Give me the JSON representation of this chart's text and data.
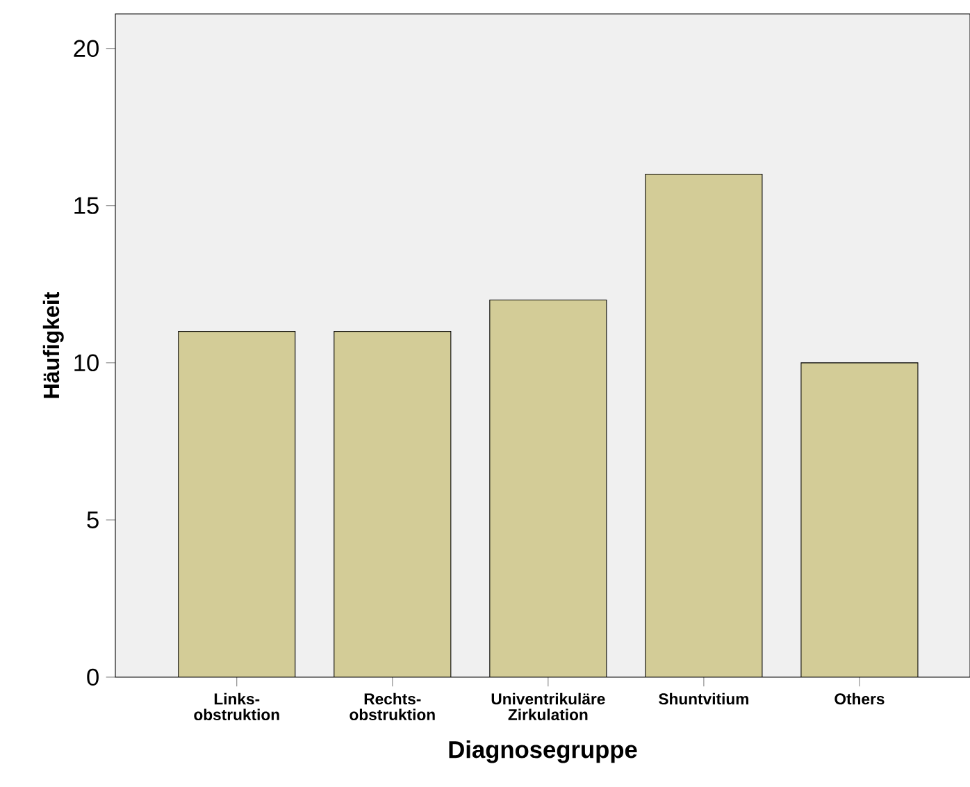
{
  "chart_data": {
    "type": "bar",
    "xlabel": "Diagnosegruppe",
    "ylabel": "Häufigkeit",
    "categories": [
      "Links- obstruktion",
      "Rechts- obstruktion",
      "Univentrikuläre Zirkulation",
      "Shuntvitium",
      "Others"
    ],
    "values": [
      11,
      11,
      12,
      16,
      10
    ],
    "color": "#d3cc97",
    "ylim": [
      0,
      21.1
    ],
    "yticks": [
      0,
      5,
      10,
      15,
      20
    ]
  }
}
